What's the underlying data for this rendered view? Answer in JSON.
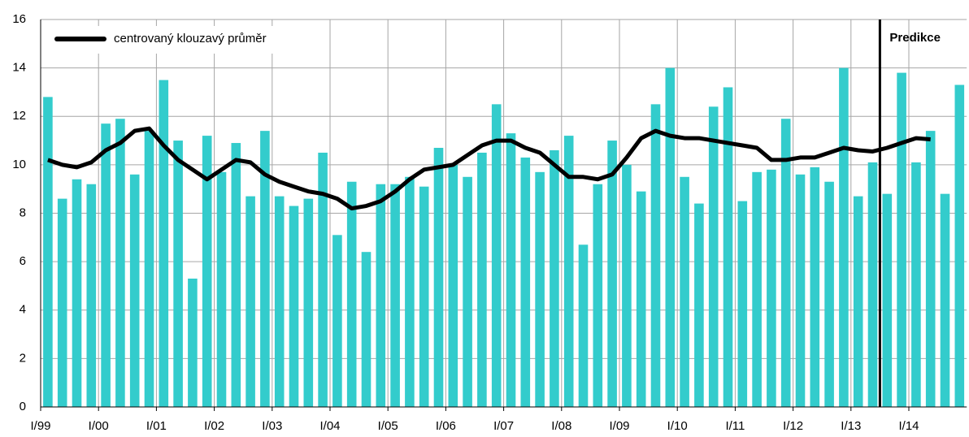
{
  "chart_data": {
    "type": "bar",
    "categories": [
      "I/99",
      null,
      null,
      null,
      "I/00",
      null,
      null,
      null,
      "I/01",
      null,
      null,
      null,
      "I/02",
      null,
      null,
      null,
      "I/03",
      null,
      null,
      null,
      "I/04",
      null,
      null,
      null,
      "I/05",
      null,
      null,
      null,
      "I/06",
      null,
      null,
      null,
      "I/07",
      null,
      null,
      null,
      "I/08",
      null,
      null,
      null,
      "I/09",
      null,
      null,
      null,
      "I/10",
      null,
      null,
      null,
      "I/11",
      null,
      null,
      null,
      "I/12",
      null,
      null,
      null,
      "I/13",
      null,
      null,
      null,
      "I/14",
      null,
      null,
      null
    ],
    "values": [
      12.8,
      8.6,
      9.4,
      9.2,
      11.7,
      11.9,
      9.6,
      11.4,
      13.5,
      11.0,
      5.3,
      11.2,
      9.7,
      10.9,
      8.7,
      11.4,
      8.7,
      8.3,
      8.6,
      10.5,
      7.1,
      9.3,
      6.4,
      9.2,
      9.2,
      9.5,
      9.1,
      10.7,
      10.0,
      9.5,
      10.5,
      12.5,
      11.3,
      10.3,
      9.7,
      10.6,
      11.2,
      6.7,
      9.2,
      11.0,
      10.0,
      8.9,
      12.5,
      14.0,
      9.5,
      8.4,
      12.4,
      13.2,
      8.5,
      9.7,
      9.8,
      11.9,
      9.6,
      9.9,
      9.3,
      14.0,
      8.7,
      10.1,
      8.8,
      13.8,
      10.1,
      11.4,
      8.8,
      13.3
    ],
    "color": "#33cccc",
    "line": {
      "type": "line",
      "name": "centrovaný klouzavý průměr",
      "color": "#000000",
      "values": [
        10.2,
        10.0,
        9.9,
        10.1,
        10.6,
        10.9,
        11.4,
        11.5,
        10.8,
        10.2,
        9.8,
        9.4,
        9.8,
        10.2,
        10.1,
        9.6,
        9.3,
        9.1,
        8.9,
        8.8,
        8.6,
        8.2,
        8.3,
        8.5,
        8.9,
        9.4,
        9.8,
        9.9,
        10.0,
        10.4,
        10.8,
        11.0,
        11.0,
        10.7,
        10.5,
        10.0,
        9.5,
        9.5,
        9.4,
        9.6,
        10.3,
        11.1,
        11.4,
        11.2,
        11.1,
        11.1,
        11.0,
        10.9,
        10.8,
        10.7,
        10.2,
        10.2,
        10.3,
        10.3,
        10.5,
        10.7,
        10.6,
        10.55,
        10.7,
        10.9,
        11.1,
        11.05,
        null,
        null
      ]
    },
    "annotation": {
      "text": "Predikce",
      "start_index": 58
    },
    "ylim": [
      0,
      16
    ],
    "yticks": [
      0,
      2,
      4,
      6,
      8,
      10,
      12,
      14,
      16
    ],
    "grid": true,
    "legend": "top-left"
  }
}
